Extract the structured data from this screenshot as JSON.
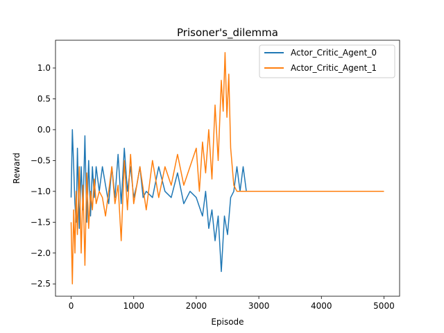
{
  "chart_data": {
    "type": "line",
    "title": "Prisoner's_dilemma",
    "xlabel": "Episode",
    "ylabel": "Reward",
    "xlim": [
      -250,
      5250
    ],
    "ylim": [
      -2.7,
      1.45
    ],
    "xticks": [
      0,
      1000,
      2000,
      3000,
      4000,
      5000
    ],
    "xtick_labels": [
      "0",
      "1000",
      "2000",
      "3000",
      "4000",
      "5000"
    ],
    "yticks": [
      -2.5,
      -2.0,
      -1.5,
      -1.0,
      -0.5,
      0.0,
      0.5,
      1.0
    ],
    "ytick_labels": [
      "−2.5",
      "−2.0",
      "−1.5",
      "−1.0",
      "−0.5",
      "0.0",
      "0.5",
      "1.0"
    ],
    "legend_position": "top-right",
    "series": [
      {
        "name": "Actor_Critic_Agent_0",
        "color": "#1f77b4",
        "x": [
          0,
          20,
          40,
          60,
          80,
          100,
          130,
          160,
          190,
          220,
          250,
          280,
          310,
          340,
          370,
          400,
          450,
          500,
          550,
          600,
          650,
          700,
          750,
          800,
          850,
          900,
          950,
          1000,
          1050,
          1100,
          1150,
          1200,
          1300,
          1400,
          1500,
          1600,
          1700,
          1800,
          1900,
          2000,
          2100,
          2150,
          2200,
          2250,
          2300,
          2350,
          2400,
          2450,
          2500,
          2550,
          2600,
          2650,
          2700,
          2750,
          2800,
          3000,
          3200,
          3400,
          3600,
          3800,
          4000,
          4200,
          4400,
          4600,
          4800,
          4900,
          5000
        ],
        "values": [
          -1.1,
          0.0,
          -0.6,
          -1.2,
          -1.5,
          -0.3,
          -1.6,
          -0.6,
          -1.3,
          -0.1,
          -1.5,
          -0.5,
          -1.4,
          -0.6,
          -1.1,
          -0.6,
          -1.0,
          -0.6,
          -0.9,
          -1.2,
          -0.6,
          -1.1,
          -0.4,
          -1.2,
          -0.3,
          -1.0,
          -0.6,
          -1.1,
          -0.9,
          -0.6,
          -1.1,
          -1.0,
          -1.1,
          -0.6,
          -1.0,
          -1.1,
          -0.7,
          -1.2,
          -1.0,
          -1.1,
          -1.4,
          -1.0,
          -1.6,
          -1.3,
          -1.8,
          -1.4,
          -2.3,
          -1.4,
          -1.7,
          -1.1,
          -1.0,
          -0.6,
          -1.0,
          -0.6,
          -1.0,
          -1.0,
          -1.0,
          -1.0,
          -1.0,
          -1.0,
          -1.0,
          -1.0,
          -1.0,
          -1.0,
          -1.0,
          -1.0,
          -1.0
        ]
      },
      {
        "name": "Actor_Critic_Agent_1",
        "color": "#ff7f0e",
        "x": [
          0,
          20,
          40,
          60,
          80,
          100,
          130,
          160,
          190,
          220,
          250,
          280,
          310,
          340,
          370,
          400,
          450,
          500,
          550,
          600,
          650,
          700,
          750,
          800,
          850,
          900,
          950,
          1000,
          1100,
          1200,
          1300,
          1400,
          1500,
          1600,
          1700,
          1800,
          1900,
          2000,
          2050,
          2100,
          2150,
          2200,
          2250,
          2300,
          2350,
          2400,
          2430,
          2460,
          2490,
          2520,
          2550,
          2600,
          2650,
          2700,
          2800,
          2900,
          3100,
          3300,
          3500,
          3700,
          3900,
          4100,
          4300,
          4500,
          4700,
          4900,
          5000
        ],
        "values": [
          -1.5,
          -2.5,
          -1.3,
          -2.0,
          -1.0,
          -1.7,
          -0.6,
          -2.0,
          -0.9,
          -2.2,
          -0.7,
          -1.6,
          -1.0,
          -1.3,
          -0.8,
          -1.2,
          -1.0,
          -1.1,
          -1.4,
          -1.0,
          -0.6,
          -1.2,
          -0.9,
          -1.8,
          -0.5,
          -1.3,
          -0.4,
          -1.2,
          -0.6,
          -1.3,
          -0.5,
          -1.1,
          -0.6,
          -0.9,
          -0.4,
          -0.9,
          -0.6,
          -0.3,
          -1.0,
          -0.2,
          -0.7,
          0.0,
          -0.8,
          0.4,
          -0.5,
          0.8,
          0.3,
          1.25,
          0.2,
          0.9,
          -0.3,
          -0.9,
          -1.0,
          -1.0,
          -1.0,
          -1.0,
          -1.0,
          -1.0,
          -1.0,
          -1.0,
          -1.0,
          -1.0,
          -1.0,
          -1.0,
          -1.0,
          -1.0,
          -1.0
        ]
      }
    ]
  }
}
